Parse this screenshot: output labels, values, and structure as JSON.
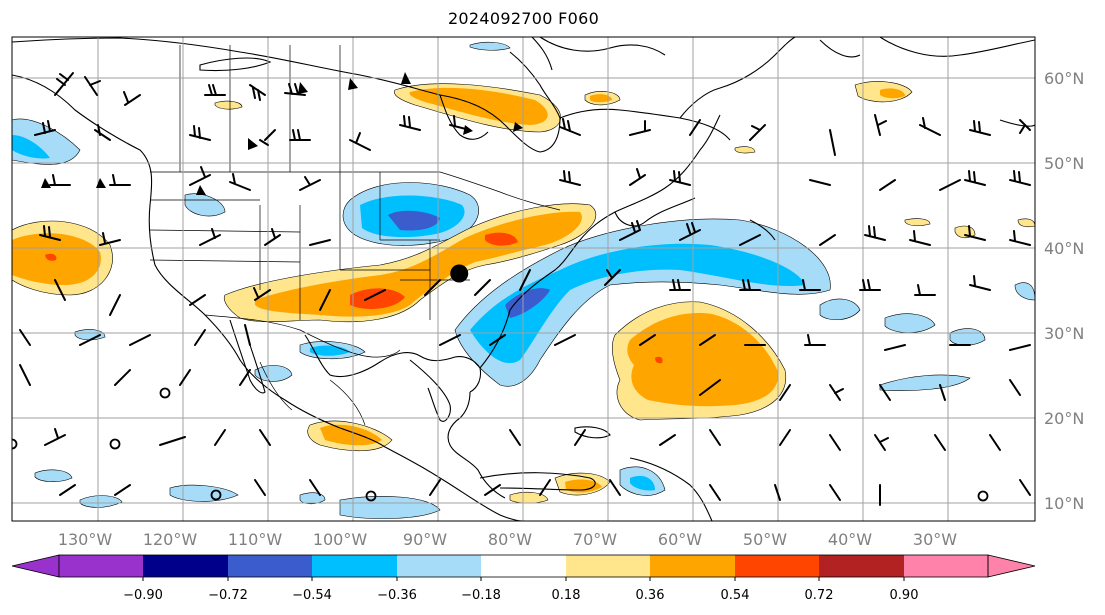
{
  "title": "2024092700 F060",
  "map": {
    "lon_labels": [
      "130°W",
      "120°W",
      "110°W",
      "100°W",
      "90°W",
      "80°W",
      "70°W",
      "60°W",
      "50°W",
      "40°W",
      "30°W"
    ],
    "lat_labels": [
      "60°N",
      "50°N",
      "40°N",
      "30°N",
      "20°N",
      "10°N"
    ],
    "label_color": "#808080",
    "grid_color": "#a0a0a0",
    "marker": {
      "lon": -87.5,
      "lat": 37.0,
      "label": ""
    }
  },
  "colorbar": {
    "ticks": [
      "−0.90",
      "−0.72",
      "−0.54",
      "−0.36",
      "−0.18",
      "0.18",
      "0.36",
      "0.54",
      "0.72",
      "0.90"
    ],
    "colors": [
      "#9932cc",
      "#00008b",
      "#3a5ccc",
      "#00bfff",
      "#a6dcf8",
      "#ffffff",
      "#ffe68c",
      "#ffa500",
      "#ff4500",
      "#b22222",
      "#ff82ab"
    ],
    "extend": "both"
  }
}
